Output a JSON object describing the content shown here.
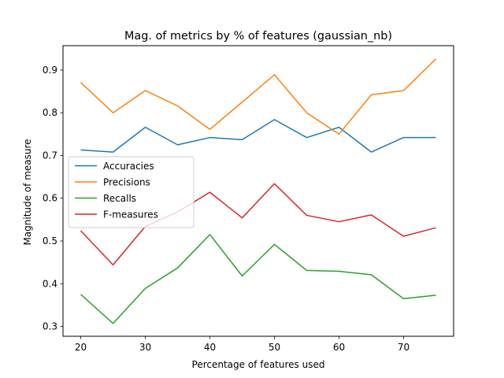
{
  "chart_data": {
    "type": "line",
    "title": "Mag. of metrics by % of features (gaussian_nb)",
    "xlabel": "Percentage of features used",
    "ylabel": "Magnitude of measure",
    "x": [
      20,
      25,
      30,
      35,
      40,
      45,
      50,
      55,
      60,
      65,
      70,
      75
    ],
    "xlim": [
      17.25,
      77.75
    ],
    "ylim": [
      0.277,
      0.957
    ],
    "xticks": [
      20,
      30,
      40,
      50,
      60,
      70
    ],
    "yticks": [
      0.3,
      0.4,
      0.5,
      0.6,
      0.7,
      0.8,
      0.9
    ],
    "ytick_labels": [
      "0.3",
      "0.4",
      "0.5",
      "0.6",
      "0.7",
      "0.8",
      "0.9"
    ],
    "grid": false,
    "legend_position": "center-left",
    "series": [
      {
        "name": "Accuracies",
        "color": "#1f77b4",
        "values": [
          0.713,
          0.708,
          0.766,
          0.725,
          0.742,
          0.737,
          0.784,
          0.742,
          0.766,
          0.708,
          0.742,
          0.742
        ]
      },
      {
        "name": "Precisions",
        "color": "#ff7f0e",
        "values": [
          0.871,
          0.8,
          0.852,
          0.816,
          0.761,
          0.825,
          0.889,
          0.8,
          0.75,
          0.842,
          0.852,
          0.926
        ]
      },
      {
        "name": "Recalls",
        "color": "#2ca02c",
        "values": [
          0.375,
          0.307,
          0.389,
          0.437,
          0.515,
          0.418,
          0.492,
          0.431,
          0.429,
          0.421,
          0.365,
          0.373
        ]
      },
      {
        "name": "F-measures",
        "color": "#d62728",
        "values": [
          0.524,
          0.444,
          0.534,
          0.568,
          0.614,
          0.554,
          0.634,
          0.56,
          0.545,
          0.561,
          0.511,
          0.531
        ]
      }
    ]
  }
}
